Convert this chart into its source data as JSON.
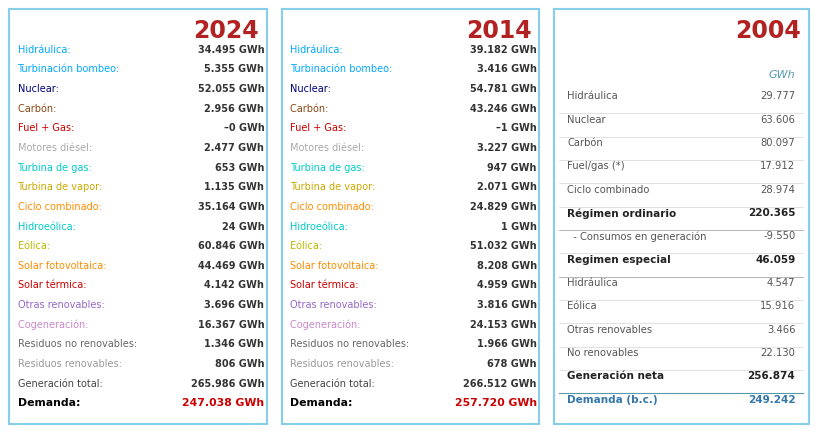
{
  "panel2024": {
    "title": "2024",
    "title_color": "#b22222",
    "border_color": "#87ceeb",
    "rows": [
      {
        "label": "Hidráulica: ",
        "label_color": "#00aaff",
        "value": "34.495 GWh"
      },
      {
        "label": "Turbinación bombeo: ",
        "label_color": "#00aaff",
        "value": "5.355 GWh"
      },
      {
        "label": "Nuclear: ",
        "label_color": "#000080",
        "value": "52.055 GWh"
      },
      {
        "label": "Carbón: ",
        "label_color": "#8b4513",
        "value": "2.956 GWh"
      },
      {
        "label": "Fuel + Gas: ",
        "label_color": "#cc0000",
        "value": "–0 GWh"
      },
      {
        "label": "Motores diésel: ",
        "label_color": "#aaaaaa",
        "value": "2.477 GWh"
      },
      {
        "label": "Turbina de gas: ",
        "label_color": "#00cccc",
        "value": "653 GWh"
      },
      {
        "label": "Turbina de vapor: ",
        "label_color": "#ccaa00",
        "value": "1.135 GWh"
      },
      {
        "label": "Ciclo combinado: ",
        "label_color": "#ff8c00",
        "value": "35.164 GWh"
      },
      {
        "label": "Hidroeólica: ",
        "label_color": "#00cccc",
        "value": "24 GWh"
      },
      {
        "label": "Eólica: ",
        "label_color": "#bbbb00",
        "value": "60.846 GWh"
      },
      {
        "label": "Solar fotovoltaica: ",
        "label_color": "#ff8c00",
        "value": "44.469 GWh"
      },
      {
        "label": "Solar térmica: ",
        "label_color": "#cc0000",
        "value": "4.142 GWh"
      },
      {
        "label": "Otras renovables: ",
        "label_color": "#9966cc",
        "value": "3.696 GWh"
      },
      {
        "label": "Cogeneración: ",
        "label_color": "#cc88cc",
        "value": "16.367 GWh"
      },
      {
        "label": "Residuos no renovables: ",
        "label_color": "#666666",
        "value": "1.346 GWh"
      },
      {
        "label": "Residuos renovables: ",
        "label_color": "#999999",
        "value": "806 GWh"
      },
      {
        "label": "Generación total: ",
        "label_color": "#444444",
        "value": "265.986 GWh"
      },
      {
        "label": "Demanda:",
        "label_color": "#000000",
        "value": "247.038 GWh",
        "demanda": true
      }
    ]
  },
  "panel2014": {
    "title": "2014",
    "title_color": "#b22222",
    "border_color": "#87ceeb",
    "rows": [
      {
        "label": "Hidráulica: ",
        "label_color": "#00aaff",
        "value": "39.182 GWh"
      },
      {
        "label": "Turbinación bombeo: ",
        "label_color": "#00aaff",
        "value": "3.416 GWh"
      },
      {
        "label": "Nuclear: ",
        "label_color": "#000080",
        "value": "54.781 GWh"
      },
      {
        "label": "Carbón: ",
        "label_color": "#8b4513",
        "value": "43.246 GWh"
      },
      {
        "label": "Fuel + Gas: ",
        "label_color": "#cc0000",
        "value": "–1 GWh"
      },
      {
        "label": "Motores diésel: ",
        "label_color": "#aaaaaa",
        "value": "3.227 GWh"
      },
      {
        "label": "Turbina de gas: ",
        "label_color": "#00cccc",
        "value": "947 GWh"
      },
      {
        "label": "Turbina de vapor: ",
        "label_color": "#ccaa00",
        "value": "2.071 GWh"
      },
      {
        "label": "Ciclo combinado: ",
        "label_color": "#ff8c00",
        "value": "24.829 GWh"
      },
      {
        "label": "Hidroeólica: ",
        "label_color": "#00cccc",
        "value": "1 GWh"
      },
      {
        "label": "Eólica: ",
        "label_color": "#bbbb00",
        "value": "51.032 GWh"
      },
      {
        "label": "Solar fotovoltaica: ",
        "label_color": "#ff8c00",
        "value": "8.208 GWh"
      },
      {
        "label": "Solar térmica: ",
        "label_color": "#cc0000",
        "value": "4.959 GWh"
      },
      {
        "label": "Otras renovables: ",
        "label_color": "#9966cc",
        "value": "3.816 GWh"
      },
      {
        "label": "Cogeneración: ",
        "label_color": "#cc88cc",
        "value": "24.153 GWh"
      },
      {
        "label": "Residuos no renovables: ",
        "label_color": "#666666",
        "value": "1.966 GWh"
      },
      {
        "label": "Residuos renovables: ",
        "label_color": "#999999",
        "value": "678 GWh"
      },
      {
        "label": "Generación total: ",
        "label_color": "#444444",
        "value": "266.512 GWh"
      },
      {
        "label": "Demanda:",
        "label_color": "#000000",
        "value": "257.720 GWh",
        "demanda": true
      }
    ]
  },
  "panel2004": {
    "title": "2004",
    "title_color": "#b22222",
    "border_color": "#87ceeb",
    "gwh_header": "GWh",
    "rows": [
      {
        "label": "Hidráulica",
        "value": "29.777",
        "bold": false,
        "separator_below": true
      },
      {
        "label": "Nuclear",
        "value": "63.606",
        "bold": false,
        "separator_below": true
      },
      {
        "label": "Carbón",
        "value": "80.097",
        "bold": false,
        "separator_below": true
      },
      {
        "label": "Fuel/gas (*)",
        "value": "17.912",
        "bold": false,
        "separator_below": true
      },
      {
        "label": "Ciclo combinado",
        "value": "28.974",
        "bold": false,
        "separator_below": true
      },
      {
        "label": "Régimen ordinario",
        "value": "220.365",
        "bold": true,
        "separator_below": true
      },
      {
        "label": "  - Consumos en generación",
        "value": "-9.550",
        "bold": false,
        "separator_below": true
      },
      {
        "label": "Regimen especial",
        "value": "46.059",
        "bold": true,
        "separator_below": true
      },
      {
        "label": "Hidráulica",
        "value": "4.547",
        "bold": false,
        "separator_below": true
      },
      {
        "label": "Eólica",
        "value": "15.916",
        "bold": false,
        "separator_below": true
      },
      {
        "label": "Otras renovables",
        "value": "3.466",
        "bold": false,
        "separator_below": true
      },
      {
        "label": "No renovables",
        "value": "22.130",
        "bold": false,
        "separator_below": true
      },
      {
        "label": "Generación neta",
        "value": "256.874",
        "bold": true,
        "separator_below": true
      },
      {
        "label": "Demanda (b.c.)",
        "value": "249.242",
        "bold": true,
        "demanda": true,
        "separator_below": false
      }
    ]
  },
  "bg_color": "#ffffff"
}
